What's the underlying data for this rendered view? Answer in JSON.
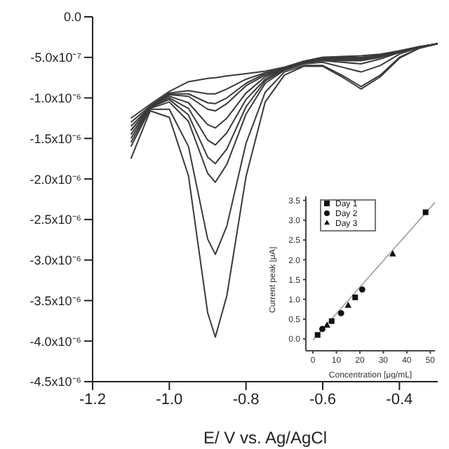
{
  "chart_data": [
    {
      "type": "line",
      "xlabel": "E/ V vs. Ag/AgCl",
      "xlim": [
        -1.2,
        -0.3
      ],
      "xticks": [
        {
          "value": -1.2,
          "label": "-1.2"
        },
        {
          "value": -1.0,
          "label": "-1.0"
        },
        {
          "value": -0.8,
          "label": "-0.8"
        },
        {
          "value": -0.6,
          "label": "-0.6"
        },
        {
          "value": -0.4,
          "label": "-0.4"
        }
      ],
      "ylim": [
        -4.5e-06,
        0
      ],
      "yticks": [
        {
          "value": 0,
          "label": "0.0"
        },
        {
          "value": -5e-07,
          "label": "-5.0x10⁻⁷"
        },
        {
          "value": -1e-06,
          "label": "-1.0x10⁻⁶"
        },
        {
          "value": -1.5e-06,
          "label": "-1.5x10⁻⁶"
        },
        {
          "value": -2e-06,
          "label": "-2.0x10⁻⁶"
        },
        {
          "value": -2.5e-06,
          "label": "-2.5x10⁻⁶"
        },
        {
          "value": -3e-06,
          "label": "-3.0x10⁻⁶"
        },
        {
          "value": -3.5e-06,
          "label": "-3.5x10⁻⁶"
        },
        {
          "value": -4e-06,
          "label": "-4.0x10⁻⁶"
        },
        {
          "value": -4.5e-06,
          "label": "-4.5x10⁻⁶"
        }
      ],
      "x": [
        -1.1,
        -1.05,
        -1.0,
        -0.95,
        -0.9,
        -0.88,
        -0.85,
        -0.8,
        -0.75,
        -0.7,
        -0.65,
        -0.6,
        -0.55,
        -0.5,
        -0.45,
        -0.4,
        -0.35,
        -0.3
      ],
      "grid": false,
      "legend": false,
      "line_style": "solid",
      "marker": "none",
      "series": [
        {
          "color": "#3a3a3a",
          "values": [
            -1.25e-06,
            -1.08e-06,
            -9.2e-07,
            -8e-07,
            -7.6e-07,
            -7.5e-07,
            -7.3e-07,
            -7e-07,
            -6.7e-07,
            -6.2e-07,
            -5.5e-07,
            -5e-07,
            -4.9e-07,
            -4.8e-07,
            -4.6e-07,
            -4.2e-07,
            -3.7e-07,
            -3.3e-07
          ]
        },
        {
          "color": "#3a3a3a",
          "values": [
            -1.3e-06,
            -1.1e-06,
            -9.4e-07,
            -9.1e-07,
            -9.5e-07,
            -9.5e-07,
            -8.9e-07,
            -7.7e-07,
            -6.9e-07,
            -6.3e-07,
            -5.5e-07,
            -5e-07,
            -5e-07,
            -5e-07,
            -4.7e-07,
            -4.2e-07,
            -3.7e-07,
            -3.3e-07
          ]
        },
        {
          "color": "#3a3a3a",
          "values": [
            -1.35e-06,
            -1.11e-06,
            -9.5e-07,
            -9.5e-07,
            -1.06e-06,
            -1.07e-06,
            -1e-06,
            -8.2e-07,
            -7e-07,
            -6.3e-07,
            -5.5e-07,
            -5.1e-07,
            -5.1e-07,
            -5.1e-07,
            -4.8e-07,
            -4.3e-07,
            -3.7e-07,
            -3.3e-07
          ]
        },
        {
          "color": "#3a3a3a",
          "values": [
            -1.4e-06,
            -1.11e-06,
            -9.6e-07,
            -9.8e-07,
            -1.14e-06,
            -1.16e-06,
            -1.07e-06,
            -8.5e-07,
            -7.2e-07,
            -6.3e-07,
            -5.6e-07,
            -5.2e-07,
            -5.2e-07,
            -5.2e-07,
            -4.8e-07,
            -4.3e-07,
            -3.8e-07,
            -3.3e-07
          ]
        },
        {
          "color": "#3a3a3a",
          "values": [
            -1.4e-06,
            -1.11e-06,
            -9.8e-07,
            -1.06e-06,
            -1.33e-06,
            -1.37e-06,
            -1.25e-06,
            -9.4e-07,
            -7.4e-07,
            -6.4e-07,
            -5.6e-07,
            -5.2e-07,
            -5.3e-07,
            -5.3e-07,
            -4.9e-07,
            -4.3e-07,
            -3.8e-07,
            -3.3e-07
          ]
        },
        {
          "color": "#3a3a3a",
          "values": [
            -1.45e-06,
            -1.12e-06,
            -1e-06,
            -1.13e-06,
            -1.52e-06,
            -1.58e-06,
            -1.43e-06,
            -1.02e-06,
            -7.7e-07,
            -6.4e-07,
            -5.7e-07,
            -5.3e-07,
            -5.4e-07,
            -5.4e-07,
            -5e-07,
            -4.4e-07,
            -3.8e-07,
            -3.3e-07
          ]
        },
        {
          "color": "#3a3a3a",
          "values": [
            -1.5e-06,
            -1.12e-06,
            -1.02e-06,
            -1.21e-06,
            -1.73e-06,
            -1.81e-06,
            -1.63e-06,
            -1.11e-06,
            -7.9e-07,
            -6.5e-07,
            -5.7e-07,
            -5.4e-07,
            -5.6e-07,
            -5.8e-07,
            -5.2e-07,
            -4.4e-07,
            -3.8e-07,
            -3.3e-07
          ]
        },
        {
          "color": "#3a3a3a",
          "values": [
            -1.55e-06,
            -1.13e-06,
            -1.05e-06,
            -1.29e-06,
            -1.93e-06,
            -2.04e-06,
            -1.82e-06,
            -1.2e-06,
            -8.2e-07,
            -6.6e-07,
            -5.8e-07,
            -5.6e-07,
            -6.2e-07,
            -6.8e-07,
            -6e-07,
            -4.6e-07,
            -3.8e-07,
            -3.3e-07
          ]
        },
        {
          "color": "#3a3a3a",
          "values": [
            -1.6e-06,
            -1.14e-06,
            -1.14e-06,
            -1.6e-06,
            -2.74e-06,
            -2.93e-06,
            -2.58e-06,
            -1.56e-06,
            -9.3e-07,
            -6.8e-07,
            -6e-07,
            -6e-07,
            -7.2e-07,
            -8.6e-07,
            -7.2e-07,
            -5e-07,
            -3.9e-07,
            -3.3e-07
          ]
        },
        {
          "color": "#3a3a3a",
          "values": [
            -1.75e-06,
            -1.16e-06,
            -1.24e-06,
            -1.96e-06,
            -3.65e-06,
            -3.95e-06,
            -3.44e-06,
            -1.97e-06,
            -1.05e-06,
            -7.2e-07,
            -6.1e-07,
            -6.1e-07,
            -7.4e-07,
            -8.9e-07,
            -7.4e-07,
            -5.1e-07,
            -3.9e-07,
            -3.3e-07
          ]
        }
      ]
    },
    {
      "type": "scatter",
      "xlabel": "Concentration [μg/mL]",
      "ylabel": "Current peak [μA]",
      "xlim": [
        -3,
        52
      ],
      "xticks": [
        0,
        10,
        20,
        30,
        40,
        50
      ],
      "ylim": [
        -0.3,
        3.6
      ],
      "yticks": [
        {
          "value": 0,
          "label": "0.0"
        },
        {
          "value": 0.5,
          "label": "0.5"
        },
        {
          "value": 1,
          "label": "1.0"
        },
        {
          "value": 1.5,
          "label": "1.5"
        },
        {
          "value": 2,
          "label": "2.0"
        },
        {
          "value": 2.5,
          "label": "2.5"
        },
        {
          "value": 3,
          "label": "3.0"
        },
        {
          "value": 3.5,
          "label": "3.5"
        }
      ],
      "legend": "top left",
      "grid": false,
      "series": [
        {
          "name": "Day 1",
          "color": "#111111",
          "marker": "square",
          "x": [
            2,
            8,
            18,
            48
          ],
          "values": [
            0.1,
            0.45,
            1.05,
            3.2
          ]
        },
        {
          "name": "Day 2",
          "color": "#111111",
          "marker": "circle",
          "x": [
            4,
            12,
            21
          ],
          "values": [
            0.25,
            0.65,
            1.25
          ]
        },
        {
          "name": "Day 3",
          "color": "#111111",
          "marker": "triangle",
          "x": [
            6,
            15,
            34
          ],
          "values": [
            0.35,
            0.85,
            2.15
          ]
        },
        {
          "type": "line",
          "color": "#9a9a9a",
          "x": [
            0,
            52
          ],
          "values": [
            -0.03,
            3.45
          ]
        }
      ]
    }
  ]
}
